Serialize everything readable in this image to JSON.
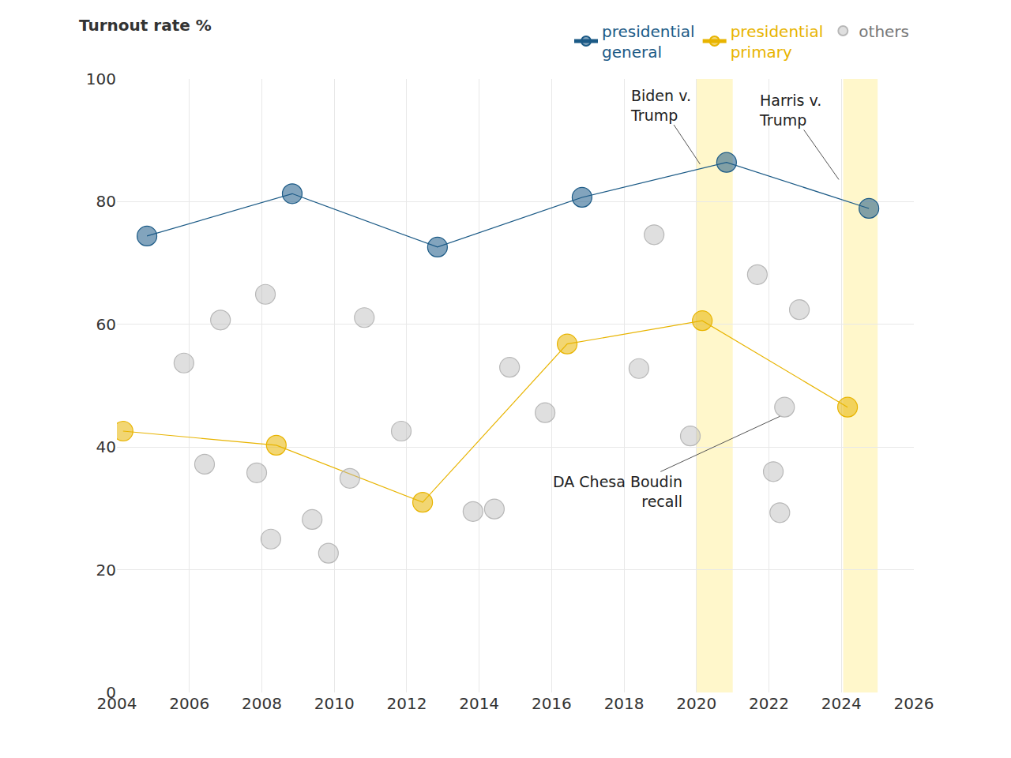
{
  "chart_data": {
    "type": "scatter",
    "y_label": "Turnout rate %",
    "xlim": [
      2004,
      2026
    ],
    "xticks": [
      2004,
      2006,
      2008,
      2010,
      2012,
      2014,
      2016,
      2018,
      2020,
      2022,
      2024,
      2026
    ],
    "ylim": [
      0,
      100
    ],
    "yticks": [
      0,
      20,
      40,
      60,
      80,
      100
    ],
    "grid": true,
    "legend": "top right",
    "series": [
      {
        "name": "presidential general",
        "type": "line",
        "marker": "circle",
        "line_style": "solid",
        "color": "#1b5a86",
        "x": [
          2004.83,
          2008.84,
          2012.85,
          2016.84,
          2020.83,
          2024.76
        ],
        "values": [
          74.4,
          81.3,
          72.6,
          80.7,
          86.4,
          78.9
        ]
      },
      {
        "name": "presidential primary",
        "type": "line",
        "marker": "circle",
        "line_style": "solid",
        "color": "#e8b400",
        "x": [
          2004.17,
          2008.4,
          2012.44,
          2016.43,
          2020.16,
          2024.17
        ],
        "values": [
          42.6,
          40.3,
          31.0,
          56.8,
          60.6,
          46.5
        ]
      },
      {
        "name": "others",
        "type": "scatter",
        "marker": "circle",
        "color": "#b8b8b8",
        "x": [
          2005.85,
          2006.42,
          2006.86,
          2007.86,
          2008.1,
          2008.25,
          2009.39,
          2009.84,
          2010.43,
          2010.83,
          2011.85,
          2013.83,
          2014.42,
          2014.84,
          2015.82,
          2018.41,
          2018.83,
          2019.83,
          2021.68,
          2022.43,
          2022.12,
          2022.3,
          2022.84
        ],
        "values": [
          53.7,
          37.2,
          60.7,
          35.8,
          64.9,
          25.0,
          28.2,
          22.7,
          34.9,
          61.1,
          42.6,
          29.5,
          29.9,
          53.0,
          45.6,
          52.8,
          74.6,
          41.8,
          68.1,
          46.5,
          36.0,
          29.3,
          62.4
        ]
      }
    ],
    "highlights": [
      [
        2020.0,
        2021.0
      ],
      [
        2024.05,
        2025.0
      ]
    ],
    "annotations": [
      {
        "text": "Biden v.\nTrump",
        "x": 2020.1,
        "y": 86.1
      },
      {
        "text": "Harris v.\nTrump",
        "x": 2023.93,
        "y": 83.6
      },
      {
        "text": "DA Chesa Boudin\nrecall",
        "x": 2022.3,
        "y": 45.0
      }
    ]
  }
}
